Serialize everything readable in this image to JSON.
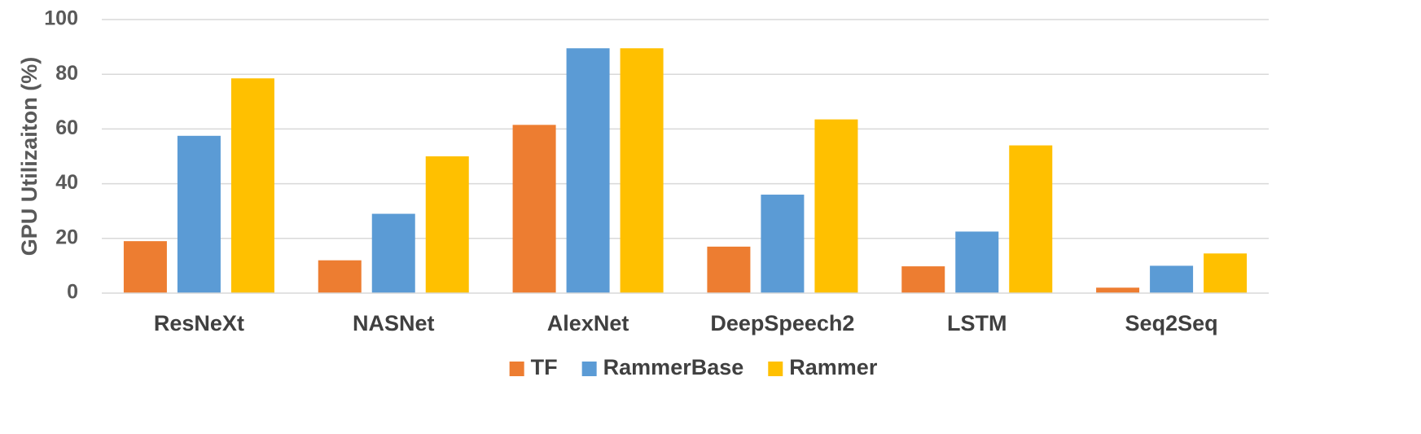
{
  "chart_data": {
    "type": "bar",
    "ylabel": "GPU Utilizaiton (%)",
    "xlabel": "",
    "ylim": [
      0,
      100
    ],
    "yticks": [
      0,
      20,
      40,
      60,
      80,
      100
    ],
    "grid": true,
    "legend_position": "bottom",
    "categories": [
      "ResNeXt",
      "NASNet",
      "AlexNet",
      "DeepSpeech2",
      "LSTM",
      "Seq2Seq"
    ],
    "series": [
      {
        "name": "TF",
        "color": "#ED7D31",
        "values": [
          19,
          12,
          61.5,
          17,
          9.8,
          2
        ]
      },
      {
        "name": "RammerBase",
        "color": "#5B9BD5",
        "values": [
          57.5,
          29,
          89.5,
          36,
          22.5,
          10
        ]
      },
      {
        "name": "Rammer",
        "color": "#FFC000",
        "values": [
          78.5,
          50,
          89.5,
          63.5,
          54,
          14.5
        ]
      }
    ]
  }
}
